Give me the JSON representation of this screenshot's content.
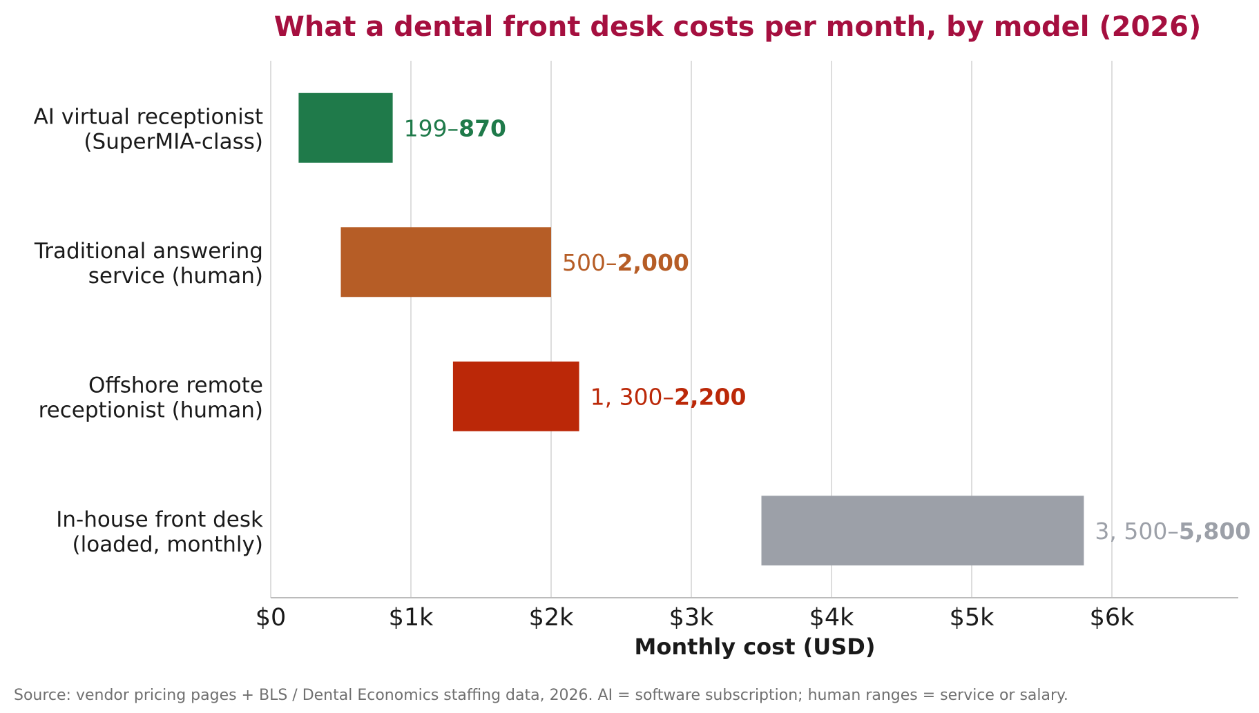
{
  "chart_data": {
    "type": "bar",
    "orientation": "horizontal-range",
    "title": "What a dental front desk costs per month, by model (2026)",
    "xlabel": "Monthly cost (USD)",
    "ylabel": "",
    "xlim": [
      0,
      6900
    ],
    "xticks": [
      0,
      1000,
      2000,
      3000,
      4000,
      5000,
      6000
    ],
    "xtick_labels": [
      "$0",
      "$1k",
      "$2k",
      "$3k",
      "$4k",
      "$5k",
      "$6k"
    ],
    "grid": "vertical",
    "categories": [
      {
        "line1": "AI virtual receptionist",
        "line2": "(SuperMIA-class)"
      },
      {
        "line1": "Traditional answering",
        "line2": "service (human)"
      },
      {
        "line1": "Offshore remote",
        "line2": "receptionist (human)"
      },
      {
        "line1": "In-house front desk",
        "line2": "(loaded, monthly)"
      }
    ],
    "ranges": [
      {
        "low": 199,
        "high": 870,
        "color": "#1f7a4a",
        "label_low": "199–",
        "label_high": "870"
      },
      {
        "low": 500,
        "high": 2000,
        "color": "#b65d26",
        "label_low": "500–",
        "label_high": "2,000"
      },
      {
        "low": 1300,
        "high": 2200,
        "color": "#bb2808",
        "label_low": "1, 300–",
        "label_high": "2,200"
      },
      {
        "low": 3500,
        "high": 5800,
        "color": "#9ca0a8",
        "label_low": "3, 500–",
        "label_high": "5,800"
      }
    ]
  },
  "source_note": "Source: vendor pricing pages + BLS / Dental Economics staffing data, 2026. AI = software subscription; human ranges = service or salary."
}
